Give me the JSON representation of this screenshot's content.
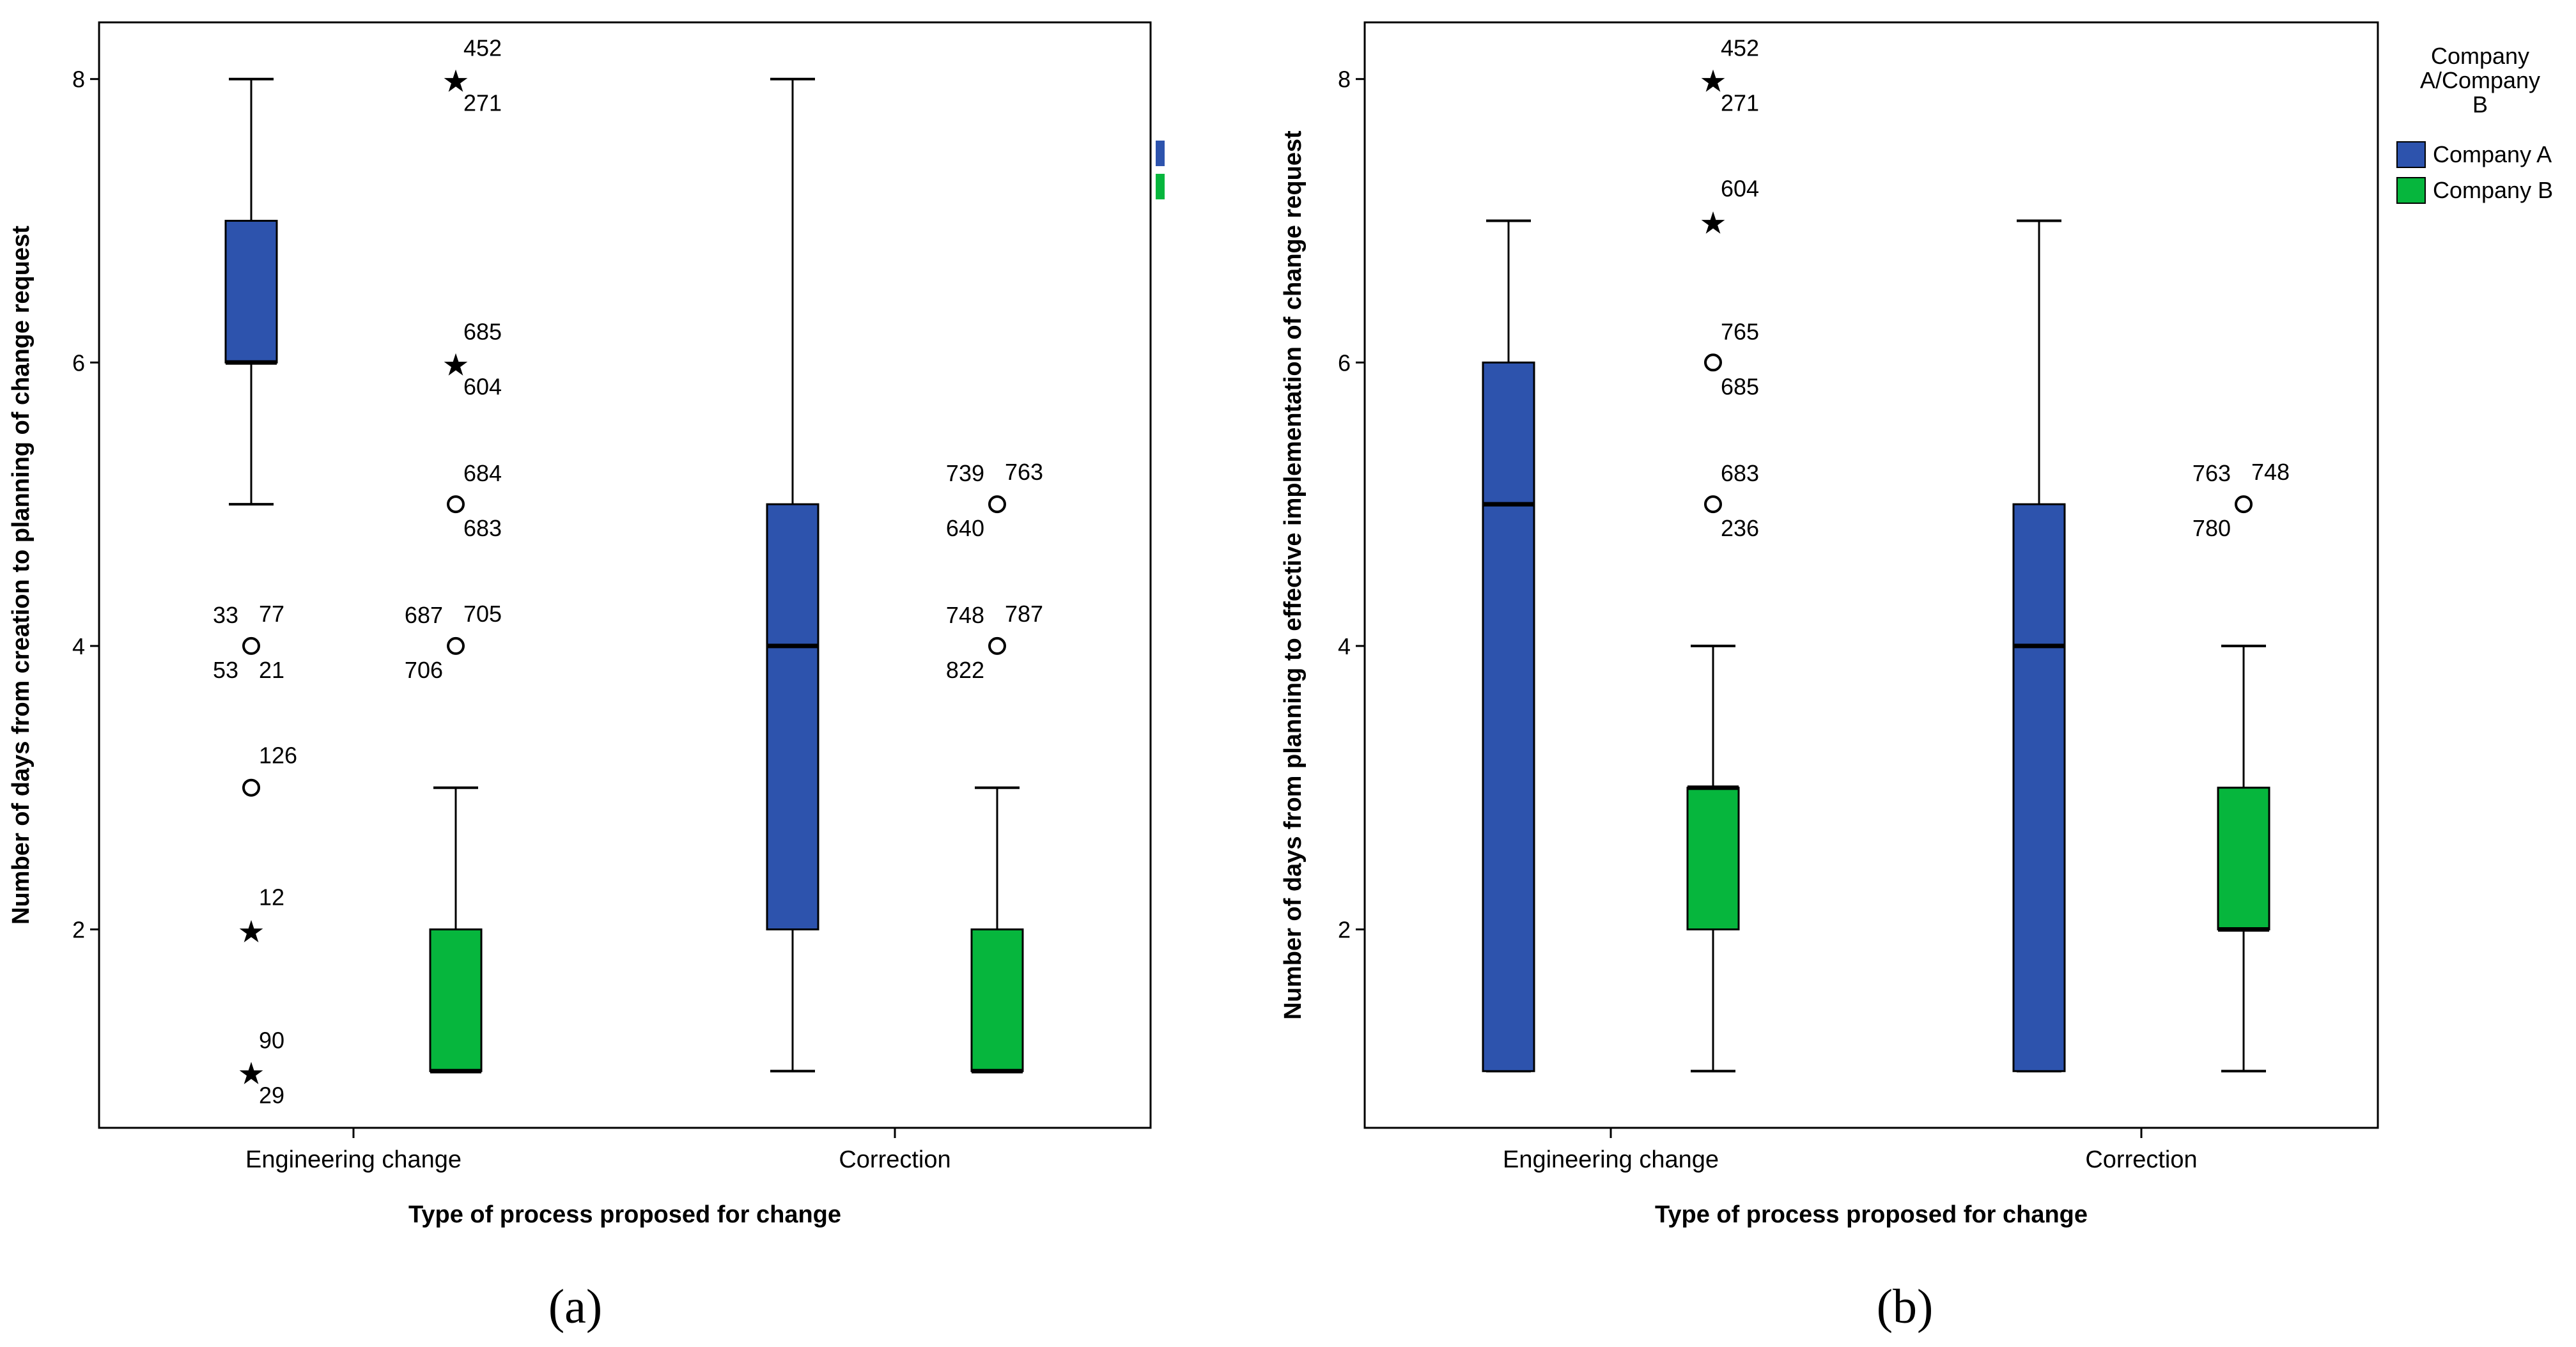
{
  "colors": {
    "company_a": "#2d53ad",
    "company_b": "#06b63d",
    "axis": "#000000"
  },
  "legend": {
    "title": [
      "Company",
      "A/Company",
      "B"
    ],
    "entries": [
      {
        "label": "Company A",
        "color": "#2d53ad"
      },
      {
        "label": "Company B",
        "color": "#06b63d"
      }
    ]
  },
  "chart_data": [
    {
      "type": "boxplot",
      "panel_label": "(a)",
      "xlabel": "Type of process proposed for change",
      "ylabel": "Number of days from creation to planning of change request",
      "ylim": [
        0.6,
        8.4
      ],
      "yticks": [
        2,
        4,
        6,
        8
      ],
      "categories": [
        "Engineering change",
        "Correction"
      ],
      "boxes": [
        {
          "category": "Engineering change",
          "series": "Company A",
          "whisker_low": 5,
          "q1": 6,
          "median": 6,
          "q3": 7,
          "whisker_high": 8,
          "outliers": [
            {
              "value": 4,
              "kind": "circle",
              "labels": [
                "33",
                "77",
                "53",
                "21"
              ]
            },
            {
              "value": 3,
              "kind": "circle",
              "labels": [
                "126"
              ]
            },
            {
              "value": 2,
              "kind": "star",
              "labels": [
                "12"
              ]
            },
            {
              "value": 1,
              "kind": "star",
              "labels": [
                "90",
                "29"
              ]
            }
          ]
        },
        {
          "category": "Engineering change",
          "series": "Company B",
          "whisker_low": 1,
          "q1": 1,
          "median": 1,
          "q3": 2,
          "whisker_high": 3,
          "outliers": [
            {
              "value": 8,
              "kind": "star",
              "labels": [
                "452",
                "271"
              ]
            },
            {
              "value": 6,
              "kind": "star",
              "labels": [
                "685",
                "604"
              ]
            },
            {
              "value": 5,
              "kind": "circle",
              "labels": [
                "684",
                "683"
              ]
            },
            {
              "value": 4,
              "kind": "circle",
              "labels": [
                "687",
                "705",
                "706"
              ]
            }
          ]
        },
        {
          "category": "Correction",
          "series": "Company A",
          "whisker_low": 1,
          "q1": 2,
          "median": 4,
          "q3": 5,
          "whisker_high": 8,
          "outliers": []
        },
        {
          "category": "Correction",
          "series": "Company B",
          "whisker_low": 1,
          "q1": 1,
          "median": 1,
          "q3": 2,
          "whisker_high": 3,
          "outliers": [
            {
              "value": 5,
              "kind": "circle",
              "labels": [
                "739",
                "763",
                "640"
              ]
            },
            {
              "value": 4,
              "kind": "circle",
              "labels": [
                "748",
                "787",
                "822"
              ]
            }
          ]
        }
      ]
    },
    {
      "type": "boxplot",
      "panel_label": "(b)",
      "xlabel": "Type of process proposed for change",
      "ylabel": "Number of days from planning to effective implementation of change request",
      "ylim": [
        0.6,
        8.4
      ],
      "yticks": [
        2,
        4,
        6,
        8
      ],
      "categories": [
        "Engineering change",
        "Correction"
      ],
      "boxes": [
        {
          "category": "Engineering change",
          "series": "Company A",
          "whisker_low": 1,
          "q1": 1,
          "median": 5,
          "q3": 6,
          "whisker_high": 7,
          "outliers": []
        },
        {
          "category": "Engineering change",
          "series": "Company B",
          "whisker_low": 1,
          "q1": 2,
          "median": 3,
          "q3": 3,
          "whisker_high": 4,
          "outliers": [
            {
              "value": 8,
              "kind": "star",
              "labels": [
                "452",
                "271"
              ]
            },
            {
              "value": 7,
              "kind": "star",
              "labels": [
                "604"
              ]
            },
            {
              "value": 6,
              "kind": "circle",
              "labels": [
                "765",
                "685"
              ]
            },
            {
              "value": 5,
              "kind": "circle",
              "labels": [
                "683",
                "236"
              ]
            }
          ]
        },
        {
          "category": "Correction",
          "series": "Company A",
          "whisker_low": 1,
          "q1": 1,
          "median": 4,
          "q3": 5,
          "whisker_high": 7,
          "outliers": []
        },
        {
          "category": "Correction",
          "series": "Company B",
          "whisker_low": 1,
          "q1": 2,
          "median": 2,
          "q3": 3,
          "whisker_high": 4,
          "outliers": [
            {
              "value": 5,
              "kind": "circle",
              "labels": [
                "763",
                "748",
                "780"
              ]
            }
          ]
        }
      ]
    }
  ]
}
